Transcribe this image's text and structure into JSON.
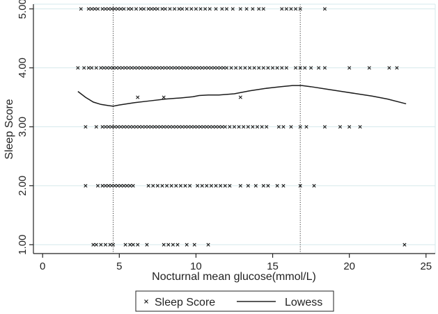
{
  "chart_data": {
    "type": "scatter",
    "xlabel": "Nocturnal mean glucose(mmol/L)",
    "ylabel": "Sleep Score",
    "xlim": [
      -0.6,
      25.6
    ],
    "ylim": [
      0.85,
      5.08
    ],
    "x_ticks": [
      0,
      5,
      10,
      15,
      20,
      25
    ],
    "x_tick_labels": [
      "0",
      "5",
      "10",
      "15",
      "20",
      "25"
    ],
    "y_ticks": [
      1,
      2,
      3,
      4,
      5
    ],
    "y_tick_labels": [
      "1.00",
      "2.00",
      "3.00",
      "4.00",
      "5.00"
    ],
    "grid": "horizontal",
    "grid_color": "#d6e8ec",
    "reference_lines_x": [
      4.6,
      16.8
    ],
    "legend": {
      "placement": "bottom",
      "entries": [
        {
          "label": "Sleep Score",
          "marker": "x"
        },
        {
          "label": "Lowess",
          "marker": "line"
        }
      ]
    },
    "series": [
      {
        "name": "Sleep Score",
        "kind": "scatter",
        "marker": "x",
        "points": [
          [
            2.5,
            5
          ],
          [
            3.0,
            5
          ],
          [
            3.2,
            5
          ],
          [
            3.4,
            5
          ],
          [
            3.6,
            5
          ],
          [
            3.9,
            5
          ],
          [
            4.1,
            5
          ],
          [
            4.3,
            5
          ],
          [
            4.5,
            5
          ],
          [
            4.7,
            5
          ],
          [
            4.9,
            5
          ],
          [
            5.1,
            5
          ],
          [
            5.3,
            5
          ],
          [
            5.6,
            5
          ],
          [
            5.8,
            5
          ],
          [
            6.1,
            5
          ],
          [
            6.4,
            5
          ],
          [
            6.6,
            5
          ],
          [
            6.9,
            5
          ],
          [
            7.1,
            5
          ],
          [
            7.3,
            5
          ],
          [
            7.5,
            5
          ],
          [
            7.8,
            5
          ],
          [
            8.0,
            5
          ],
          [
            8.3,
            5
          ],
          [
            8.6,
            5
          ],
          [
            8.9,
            5
          ],
          [
            9.1,
            5
          ],
          [
            9.4,
            5
          ],
          [
            9.7,
            5
          ],
          [
            10.0,
            5
          ],
          [
            10.3,
            5
          ],
          [
            10.6,
            5
          ],
          [
            10.9,
            5
          ],
          [
            11.3,
            5
          ],
          [
            11.7,
            5
          ],
          [
            12.0,
            5
          ],
          [
            12.4,
            5
          ],
          [
            12.9,
            5
          ],
          [
            13.3,
            5
          ],
          [
            13.7,
            5
          ],
          [
            14.1,
            5
          ],
          [
            14.4,
            5
          ],
          [
            15.6,
            5
          ],
          [
            15.9,
            5
          ],
          [
            16.2,
            5
          ],
          [
            16.5,
            5
          ],
          [
            16.8,
            5
          ],
          [
            18.4,
            5
          ],
          [
            2.3,
            4
          ],
          [
            2.7,
            4
          ],
          [
            3.0,
            4
          ],
          [
            3.2,
            4
          ],
          [
            3.5,
            4
          ],
          [
            3.8,
            4
          ],
          [
            4.0,
            4
          ],
          [
            4.2,
            4
          ],
          [
            4.4,
            4
          ],
          [
            4.6,
            4
          ],
          [
            4.8,
            4
          ],
          [
            5.0,
            4
          ],
          [
            5.2,
            4
          ],
          [
            5.4,
            4
          ],
          [
            5.6,
            4
          ],
          [
            5.8,
            4
          ],
          [
            6.0,
            4
          ],
          [
            6.2,
            4
          ],
          [
            6.4,
            4
          ],
          [
            6.6,
            4
          ],
          [
            6.8,
            4
          ],
          [
            7.0,
            4
          ],
          [
            7.2,
            4
          ],
          [
            7.4,
            4
          ],
          [
            7.6,
            4
          ],
          [
            7.8,
            4
          ],
          [
            8.0,
            4
          ],
          [
            8.2,
            4
          ],
          [
            8.4,
            4
          ],
          [
            8.6,
            4
          ],
          [
            8.8,
            4
          ],
          [
            9.0,
            4
          ],
          [
            9.2,
            4
          ],
          [
            9.4,
            4
          ],
          [
            9.6,
            4
          ],
          [
            9.8,
            4
          ],
          [
            10.0,
            4
          ],
          [
            10.2,
            4
          ],
          [
            10.4,
            4
          ],
          [
            10.6,
            4
          ],
          [
            10.8,
            4
          ],
          [
            11.0,
            4
          ],
          [
            11.2,
            4
          ],
          [
            11.4,
            4
          ],
          [
            11.6,
            4
          ],
          [
            11.8,
            4
          ],
          [
            12.0,
            4
          ],
          [
            12.3,
            4
          ],
          [
            12.6,
            4
          ],
          [
            12.9,
            4
          ],
          [
            13.2,
            4
          ],
          [
            13.5,
            4
          ],
          [
            13.8,
            4
          ],
          [
            14.1,
            4
          ],
          [
            14.4,
            4
          ],
          [
            14.7,
            4
          ],
          [
            15.0,
            4
          ],
          [
            15.3,
            4
          ],
          [
            15.6,
            4
          ],
          [
            15.9,
            4
          ],
          [
            16.5,
            4
          ],
          [
            16.8,
            4
          ],
          [
            17.1,
            4
          ],
          [
            17.5,
            4
          ],
          [
            18.0,
            4
          ],
          [
            18.4,
            4
          ],
          [
            20.0,
            4
          ],
          [
            21.3,
            4
          ],
          [
            22.6,
            4
          ],
          [
            23.1,
            4
          ],
          [
            6.2,
            3.5
          ],
          [
            7.9,
            3.5
          ],
          [
            12.9,
            3.5
          ],
          [
            2.8,
            3
          ],
          [
            3.5,
            3
          ],
          [
            3.9,
            3
          ],
          [
            4.1,
            3
          ],
          [
            4.3,
            3
          ],
          [
            4.5,
            3
          ],
          [
            4.7,
            3
          ],
          [
            4.9,
            3
          ],
          [
            5.1,
            3
          ],
          [
            5.3,
            3
          ],
          [
            5.5,
            3
          ],
          [
            5.7,
            3
          ],
          [
            5.9,
            3
          ],
          [
            6.1,
            3
          ],
          [
            6.3,
            3
          ],
          [
            6.5,
            3
          ],
          [
            6.7,
            3
          ],
          [
            6.9,
            3
          ],
          [
            7.1,
            3
          ],
          [
            7.3,
            3
          ],
          [
            7.5,
            3
          ],
          [
            7.7,
            3
          ],
          [
            7.9,
            3
          ],
          [
            8.1,
            3
          ],
          [
            8.3,
            3
          ],
          [
            8.5,
            3
          ],
          [
            8.7,
            3
          ],
          [
            8.9,
            3
          ],
          [
            9.1,
            3
          ],
          [
            9.3,
            3
          ],
          [
            9.5,
            3
          ],
          [
            9.7,
            3
          ],
          [
            9.9,
            3
          ],
          [
            10.1,
            3
          ],
          [
            10.3,
            3
          ],
          [
            10.5,
            3
          ],
          [
            10.7,
            3
          ],
          [
            10.9,
            3
          ],
          [
            11.1,
            3
          ],
          [
            11.3,
            3
          ],
          [
            11.5,
            3
          ],
          [
            11.7,
            3
          ],
          [
            11.9,
            3
          ],
          [
            12.2,
            3
          ],
          [
            12.5,
            3
          ],
          [
            12.8,
            3
          ],
          [
            13.1,
            3
          ],
          [
            13.4,
            3
          ],
          [
            13.7,
            3
          ],
          [
            14.0,
            3
          ],
          [
            14.3,
            3
          ],
          [
            14.6,
            3
          ],
          [
            15.4,
            3
          ],
          [
            15.7,
            3
          ],
          [
            16.2,
            3
          ],
          [
            16.8,
            3
          ],
          [
            17.2,
            3
          ],
          [
            18.4,
            3
          ],
          [
            19.4,
            3
          ],
          [
            20.0,
            3
          ],
          [
            20.7,
            3
          ],
          [
            2.8,
            2
          ],
          [
            3.6,
            2
          ],
          [
            3.9,
            2
          ],
          [
            4.1,
            2
          ],
          [
            4.3,
            2
          ],
          [
            4.5,
            2
          ],
          [
            4.7,
            2
          ],
          [
            4.9,
            2
          ],
          [
            5.1,
            2
          ],
          [
            5.3,
            2
          ],
          [
            5.5,
            2
          ],
          [
            5.7,
            2
          ],
          [
            5.9,
            2
          ],
          [
            6.9,
            2
          ],
          [
            7.2,
            2
          ],
          [
            7.5,
            2
          ],
          [
            7.8,
            2
          ],
          [
            8.1,
            2
          ],
          [
            8.4,
            2
          ],
          [
            8.7,
            2
          ],
          [
            9.0,
            2
          ],
          [
            9.3,
            2
          ],
          [
            9.6,
            2
          ],
          [
            10.1,
            2
          ],
          [
            10.4,
            2
          ],
          [
            10.7,
            2
          ],
          [
            11.0,
            2
          ],
          [
            11.3,
            2
          ],
          [
            11.6,
            2
          ],
          [
            11.9,
            2
          ],
          [
            12.2,
            2
          ],
          [
            12.9,
            2
          ],
          [
            13.4,
            2
          ],
          [
            13.9,
            2
          ],
          [
            14.4,
            2
          ],
          [
            14.7,
            2
          ],
          [
            15.3,
            2
          ],
          [
            15.7,
            2
          ],
          [
            16.8,
            2
          ],
          [
            17.7,
            2
          ],
          [
            3.3,
            1
          ],
          [
            3.5,
            1
          ],
          [
            3.8,
            1
          ],
          [
            4.1,
            1
          ],
          [
            4.4,
            1
          ],
          [
            4.6,
            1
          ],
          [
            5.4,
            1
          ],
          [
            5.7,
            1
          ],
          [
            5.9,
            1
          ],
          [
            6.2,
            1
          ],
          [
            6.8,
            1
          ],
          [
            7.9,
            1
          ],
          [
            8.2,
            1
          ],
          [
            8.5,
            1
          ],
          [
            8.8,
            1
          ],
          [
            9.4,
            1
          ],
          [
            9.9,
            1
          ],
          [
            10.8,
            1
          ],
          [
            23.6,
            1
          ]
        ]
      },
      {
        "name": "Lowess",
        "kind": "line",
        "points": [
          [
            2.3,
            3.6
          ],
          [
            2.8,
            3.5
          ],
          [
            3.3,
            3.42
          ],
          [
            3.8,
            3.38
          ],
          [
            4.3,
            3.36
          ],
          [
            4.6,
            3.35
          ],
          [
            5.0,
            3.37
          ],
          [
            6.0,
            3.41
          ],
          [
            7.0,
            3.44
          ],
          [
            8.0,
            3.47
          ],
          [
            9.0,
            3.49
          ],
          [
            9.8,
            3.51
          ],
          [
            10.2,
            3.53
          ],
          [
            10.8,
            3.54
          ],
          [
            11.5,
            3.54
          ],
          [
            12.5,
            3.56
          ],
          [
            13.5,
            3.61
          ],
          [
            14.5,
            3.65
          ],
          [
            15.5,
            3.68
          ],
          [
            16.3,
            3.7
          ],
          [
            16.9,
            3.7
          ],
          [
            17.5,
            3.68
          ],
          [
            18.5,
            3.64
          ],
          [
            19.5,
            3.6
          ],
          [
            20.5,
            3.56
          ],
          [
            21.5,
            3.52
          ],
          [
            22.5,
            3.47
          ],
          [
            23.7,
            3.39
          ]
        ]
      }
    ]
  }
}
